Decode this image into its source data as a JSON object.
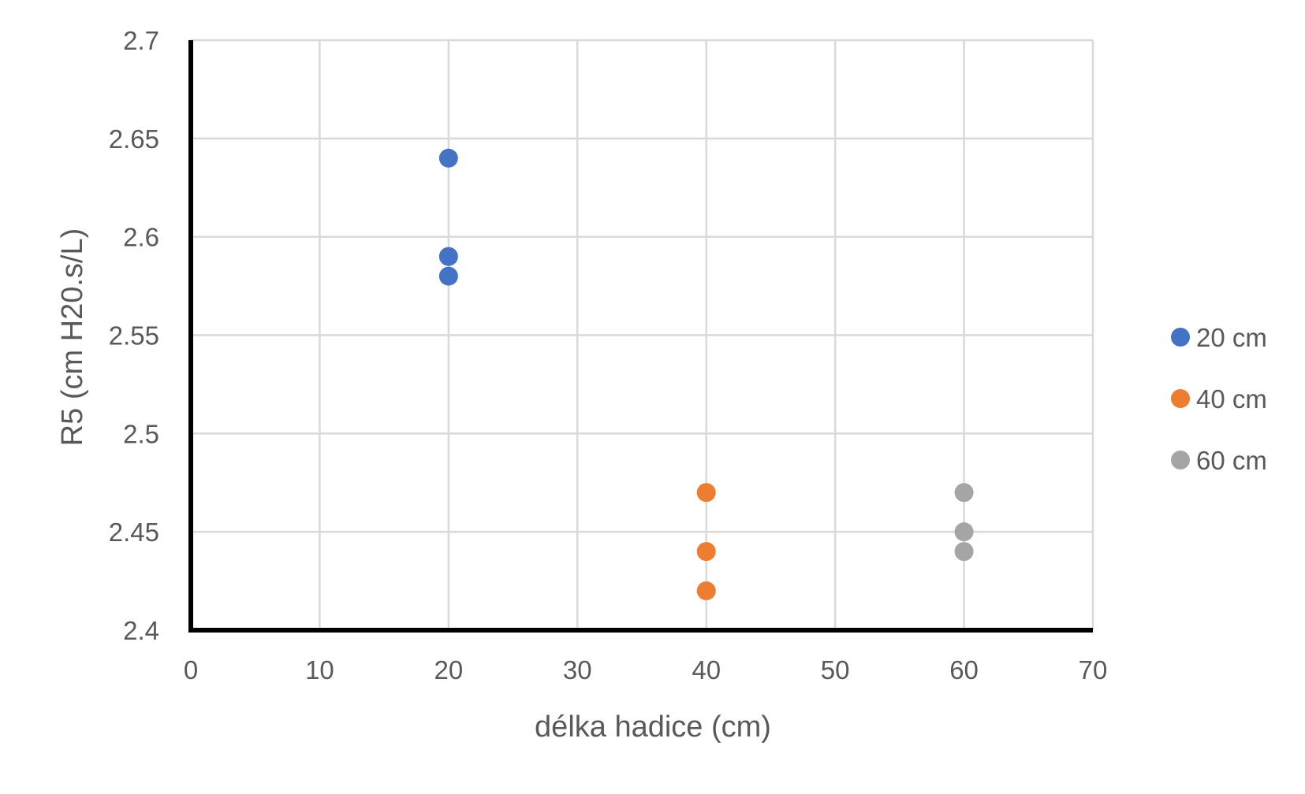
{
  "chart_data": {
    "type": "scatter",
    "title": "",
    "xlabel": "délka hadice (cm)",
    "ylabel": "R5 (cm H20.s/L)",
    "xlim": [
      0,
      70
    ],
    "ylim": [
      2.4,
      2.7
    ],
    "x_ticks": [
      "0",
      "10",
      "20",
      "30",
      "40",
      "50",
      "60",
      "70"
    ],
    "y_ticks": [
      "2.4",
      "2.45",
      "2.5",
      "2.55",
      "2.6",
      "2.65",
      "2.7"
    ],
    "grid": true,
    "legend_position": "right",
    "series": [
      {
        "name": "20 cm",
        "color": "#4472C4",
        "points": [
          {
            "x": 20,
            "y": 2.64
          },
          {
            "x": 20,
            "y": 2.59
          },
          {
            "x": 20,
            "y": 2.58
          }
        ]
      },
      {
        "name": "40 cm",
        "color": "#ED7D31",
        "points": [
          {
            "x": 40,
            "y": 2.47
          },
          {
            "x": 40,
            "y": 2.44
          },
          {
            "x": 40,
            "y": 2.42
          }
        ]
      },
      {
        "name": "60 cm",
        "color": "#A5A5A5",
        "points": [
          {
            "x": 60,
            "y": 2.47
          },
          {
            "x": 60,
            "y": 2.45
          },
          {
            "x": 60,
            "y": 2.44
          }
        ]
      }
    ]
  }
}
